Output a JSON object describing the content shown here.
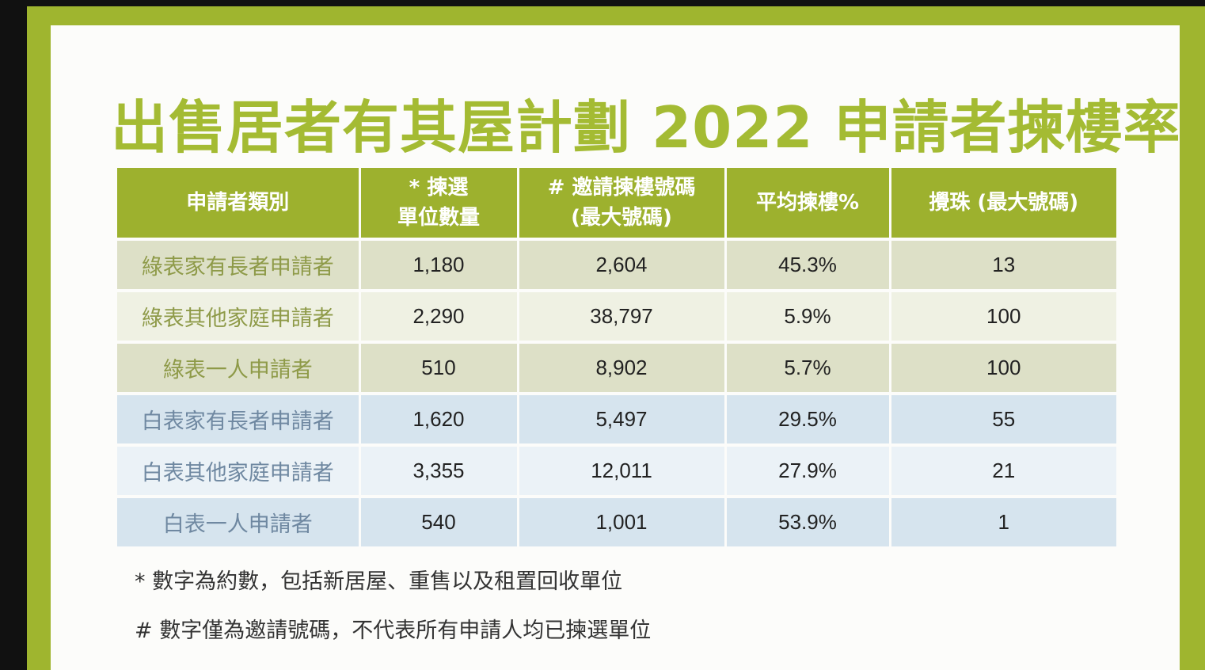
{
  "title": "出售居者有其屋計劃 2022 申請者揀樓率",
  "colors": {
    "frame": "#9fb52f",
    "title": "#a4bb33",
    "header_bg": "#9db12e",
    "green_row_dark": "#dde0c7",
    "green_row_light": "#eff1e3",
    "blue_row_dark": "#d6e4ee",
    "blue_row_light": "#ebf2f7"
  },
  "table": {
    "headers": [
      {
        "line1": "申請者類別",
        "line2": ""
      },
      {
        "line1": "* 揀選",
        "line2": "單位數量"
      },
      {
        "line1": "# 邀請揀樓號碼",
        "line2": "(最大號碼)"
      },
      {
        "line1": "平均揀樓%",
        "line2": ""
      },
      {
        "line1": "攪珠 (最大號碼)",
        "line2": ""
      }
    ],
    "rows": [
      {
        "category": "綠表家有長者申請者",
        "units": "1,180",
        "invite_no": "2,604",
        "avg_pct": "45.3%",
        "ballot": "13"
      },
      {
        "category": "綠表其他家庭申請者",
        "units": "2,290",
        "invite_no": "38,797",
        "avg_pct": "5.9%",
        "ballot": "100"
      },
      {
        "category": "綠表一人申請者",
        "units": "510",
        "invite_no": "8,902",
        "avg_pct": "5.7%",
        "ballot": "100"
      },
      {
        "category": "白表家有長者申請者",
        "units": "1,620",
        "invite_no": "5,497",
        "avg_pct": "29.5%",
        "ballot": "55"
      },
      {
        "category": "白表其他家庭申請者",
        "units": "3,355",
        "invite_no": "12,011",
        "avg_pct": "27.9%",
        "ballot": "21"
      },
      {
        "category": "白表一人申請者",
        "units": "540",
        "invite_no": "1,001",
        "avg_pct": "53.9%",
        "ballot": "1"
      }
    ]
  },
  "notes": [
    "* 數字為約數，包括新居屋、重售以及租置回收單位",
    "# 數字僅為邀請號碼，不代表所有申請人均已揀選單位"
  ]
}
